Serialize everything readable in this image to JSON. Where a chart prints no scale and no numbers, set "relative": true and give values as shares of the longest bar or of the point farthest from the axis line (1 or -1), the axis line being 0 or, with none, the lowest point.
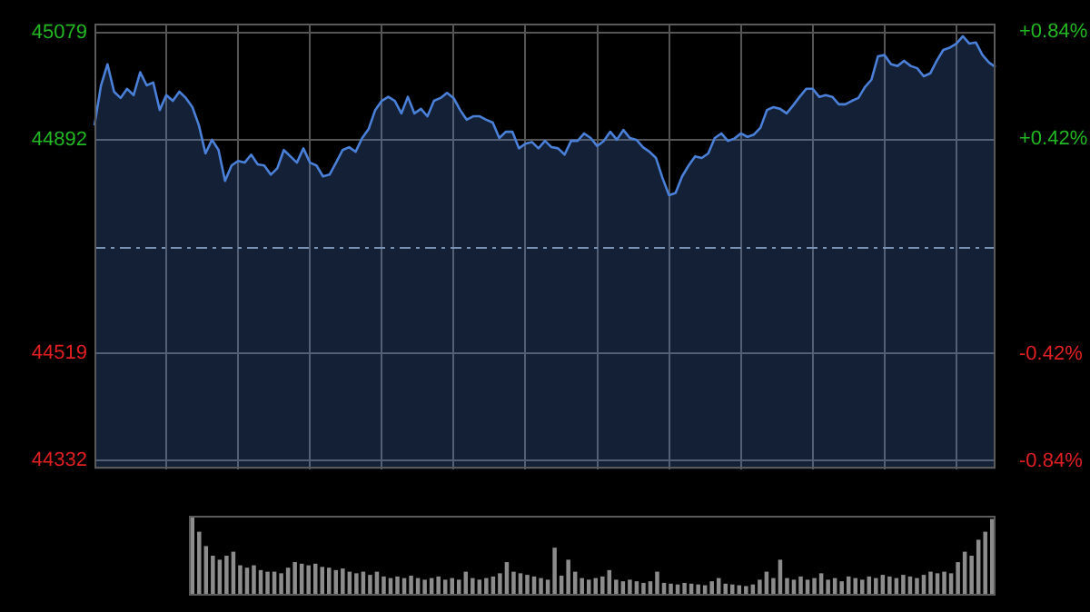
{
  "chart_data": [
    {
      "type": "area",
      "categories": [
        null,
        null,
        null,
        null,
        null,
        null,
        null,
        null,
        null,
        null,
        null,
        null,
        null,
        null,
        null,
        null,
        null,
        null,
        null,
        null,
        null,
        null,
        null,
        null,
        null,
        null,
        null,
        null,
        null,
        null,
        null,
        null,
        null,
        null,
        null,
        null,
        null,
        null,
        null,
        null,
        null,
        null,
        null,
        null,
        null,
        null,
        null,
        null,
        null,
        null,
        null,
        null,
        null,
        null,
        null,
        null,
        null,
        null,
        null,
        null,
        null,
        null,
        null,
        null,
        null,
        null,
        null,
        null,
        null,
        null,
        null,
        null,
        null,
        null,
        null,
        null,
        null,
        null,
        null,
        null,
        null,
        null,
        null,
        null,
        null,
        null,
        null,
        null,
        null,
        null,
        null,
        null,
        null,
        null,
        null,
        null,
        null,
        null,
        null,
        null,
        null,
        null,
        null,
        null,
        null,
        null,
        null,
        null,
        null,
        null,
        null,
        null,
        null,
        null,
        null,
        null,
        null,
        null,
        null,
        null,
        null,
        null,
        null,
        null,
        null,
        null,
        null,
        null,
        null,
        null,
        null,
        null,
        null,
        null,
        null,
        null,
        null,
        null,
        null
      ],
      "series": [
        {
          "color": "#4a80d8",
          "values": [
            44917,
            44987,
            45024,
            44976,
            44965,
            44981,
            44970,
            45010,
            44987,
            44992,
            44944,
            44970,
            44960,
            44976,
            44965,
            44949,
            44917,
            44868,
            44892,
            44874,
            44820,
            44847,
            44855,
            44852,
            44866,
            44849,
            44847,
            44831,
            44842,
            44874,
            44863,
            44852,
            44877,
            44852,
            44847,
            44828,
            44831,
            44852,
            44874,
            44879,
            44871,
            44895,
            44911,
            44944,
            44960,
            44967,
            44960,
            44938,
            44967,
            44938,
            44946,
            44933,
            44960,
            44965,
            44974,
            44965,
            44944,
            44927,
            44933,
            44933,
            44927,
            44922,
            44895,
            44906,
            44906,
            44877,
            44885,
            44888,
            44877,
            44890,
            44879,
            44877,
            44866,
            44890,
            44890,
            44903,
            44895,
            44881,
            44890,
            44906,
            44892,
            44909,
            44895,
            44892,
            44879,
            44871,
            44860,
            44825,
            44795,
            44799,
            44828,
            44847,
            44863,
            44860,
            44868,
            44895,
            44903,
            44890,
            44894,
            44903,
            44897,
            44901,
            44913,
            44944,
            44949,
            44946,
            44938,
            44952,
            44967,
            44981,
            44981,
            44967,
            44970,
            44967,
            44954,
            44954,
            44960,
            44965,
            44984,
            44997,
            45038,
            45040,
            45024,
            45021,
            45030,
            45021,
            45017,
            45003,
            45008,
            45030,
            45049,
            45053,
            45060,
            45073,
            45060,
            45062,
            45040,
            45027,
            45019
          ]
        }
      ],
      "ylim": [
        44316,
        45095
      ],
      "yticks": [
        45079,
        44892,
        44519,
        44332
      ],
      "y2lim": [
        -0.871,
        0.871
      ],
      "y2ticks": [
        {
          "value": 0.84,
          "label": "+0.84%"
        },
        {
          "value": 0.42,
          "label": "+0.42%"
        },
        {
          "value": -0.42,
          "label": "-0.42%"
        },
        {
          "value": -0.84,
          "label": "-0.84%"
        }
      ],
      "ref_lines": [
        {
          "axis": "y",
          "value": 44705,
          "color": "#8a9aa8",
          "line_style": "dashed"
        }
      ],
      "grid": true,
      "tick_labels": "y",
      "legend": false
    },
    {
      "type": "bar",
      "relative": true,
      "categories": [
        null,
        null,
        null,
        null,
        null,
        null,
        null,
        null,
        null,
        null,
        null,
        null,
        null,
        null,
        null,
        null,
        null,
        null,
        null,
        null,
        null,
        null,
        null,
        null,
        null,
        null,
        null,
        null,
        null,
        null,
        null,
        null,
        null,
        null,
        null,
        null,
        null,
        null,
        null,
        null,
        null,
        null,
        null,
        null,
        null,
        null,
        null,
        null,
        null,
        null,
        null,
        null,
        null,
        null,
        null,
        null,
        null,
        null,
        null,
        null,
        null,
        null,
        null,
        null,
        null,
        null,
        null,
        null,
        null,
        null,
        null,
        null,
        null,
        null,
        null,
        null,
        null,
        null,
        null,
        null,
        null,
        null,
        null,
        null,
        null,
        null,
        null,
        null,
        null,
        null,
        null,
        null,
        null,
        null,
        null,
        null,
        null,
        null,
        null,
        null,
        null,
        null,
        null,
        null,
        null,
        null,
        null,
        null,
        null,
        null,
        null,
        null,
        null,
        null,
        null,
        null,
        null,
        null
      ],
      "values": [
        1.0,
        0.8,
        0.62,
        0.5,
        0.45,
        0.5,
        0.55,
        0.38,
        0.35,
        0.38,
        0.32,
        0.3,
        0.3,
        0.28,
        0.35,
        0.42,
        0.4,
        0.38,
        0.4,
        0.36,
        0.35,
        0.32,
        0.34,
        0.3,
        0.28,
        0.3,
        0.26,
        0.3,
        0.24,
        0.22,
        0.24,
        0.22,
        0.25,
        0.22,
        0.2,
        0.22,
        0.24,
        0.2,
        0.22,
        0.2,
        0.3,
        0.22,
        0.2,
        0.22,
        0.24,
        0.28,
        0.42,
        0.3,
        0.28,
        0.26,
        0.24,
        0.22,
        0.2,
        0.6,
        0.25,
        0.45,
        0.3,
        0.22,
        0.2,
        0.22,
        0.24,
        0.32,
        0.2,
        0.18,
        0.2,
        0.18,
        0.16,
        0.18,
        0.3,
        0.16,
        0.15,
        0.14,
        0.16,
        0.15,
        0.14,
        0.13,
        0.18,
        0.22,
        0.15,
        0.14,
        0.13,
        0.12,
        0.14,
        0.2,
        0.3,
        0.22,
        0.45,
        0.22,
        0.2,
        0.24,
        0.2,
        0.22,
        0.28,
        0.2,
        0.22,
        0.18,
        0.24,
        0.22,
        0.2,
        0.24,
        0.22,
        0.26,
        0.24,
        0.22,
        0.26,
        0.24,
        0.22,
        0.26,
        0.3,
        0.28,
        0.3,
        0.28,
        0.42,
        0.55,
        0.5,
        0.7,
        0.8,
        0.96
      ],
      "color": "#8c8c8c",
      "legend": false
    }
  ]
}
